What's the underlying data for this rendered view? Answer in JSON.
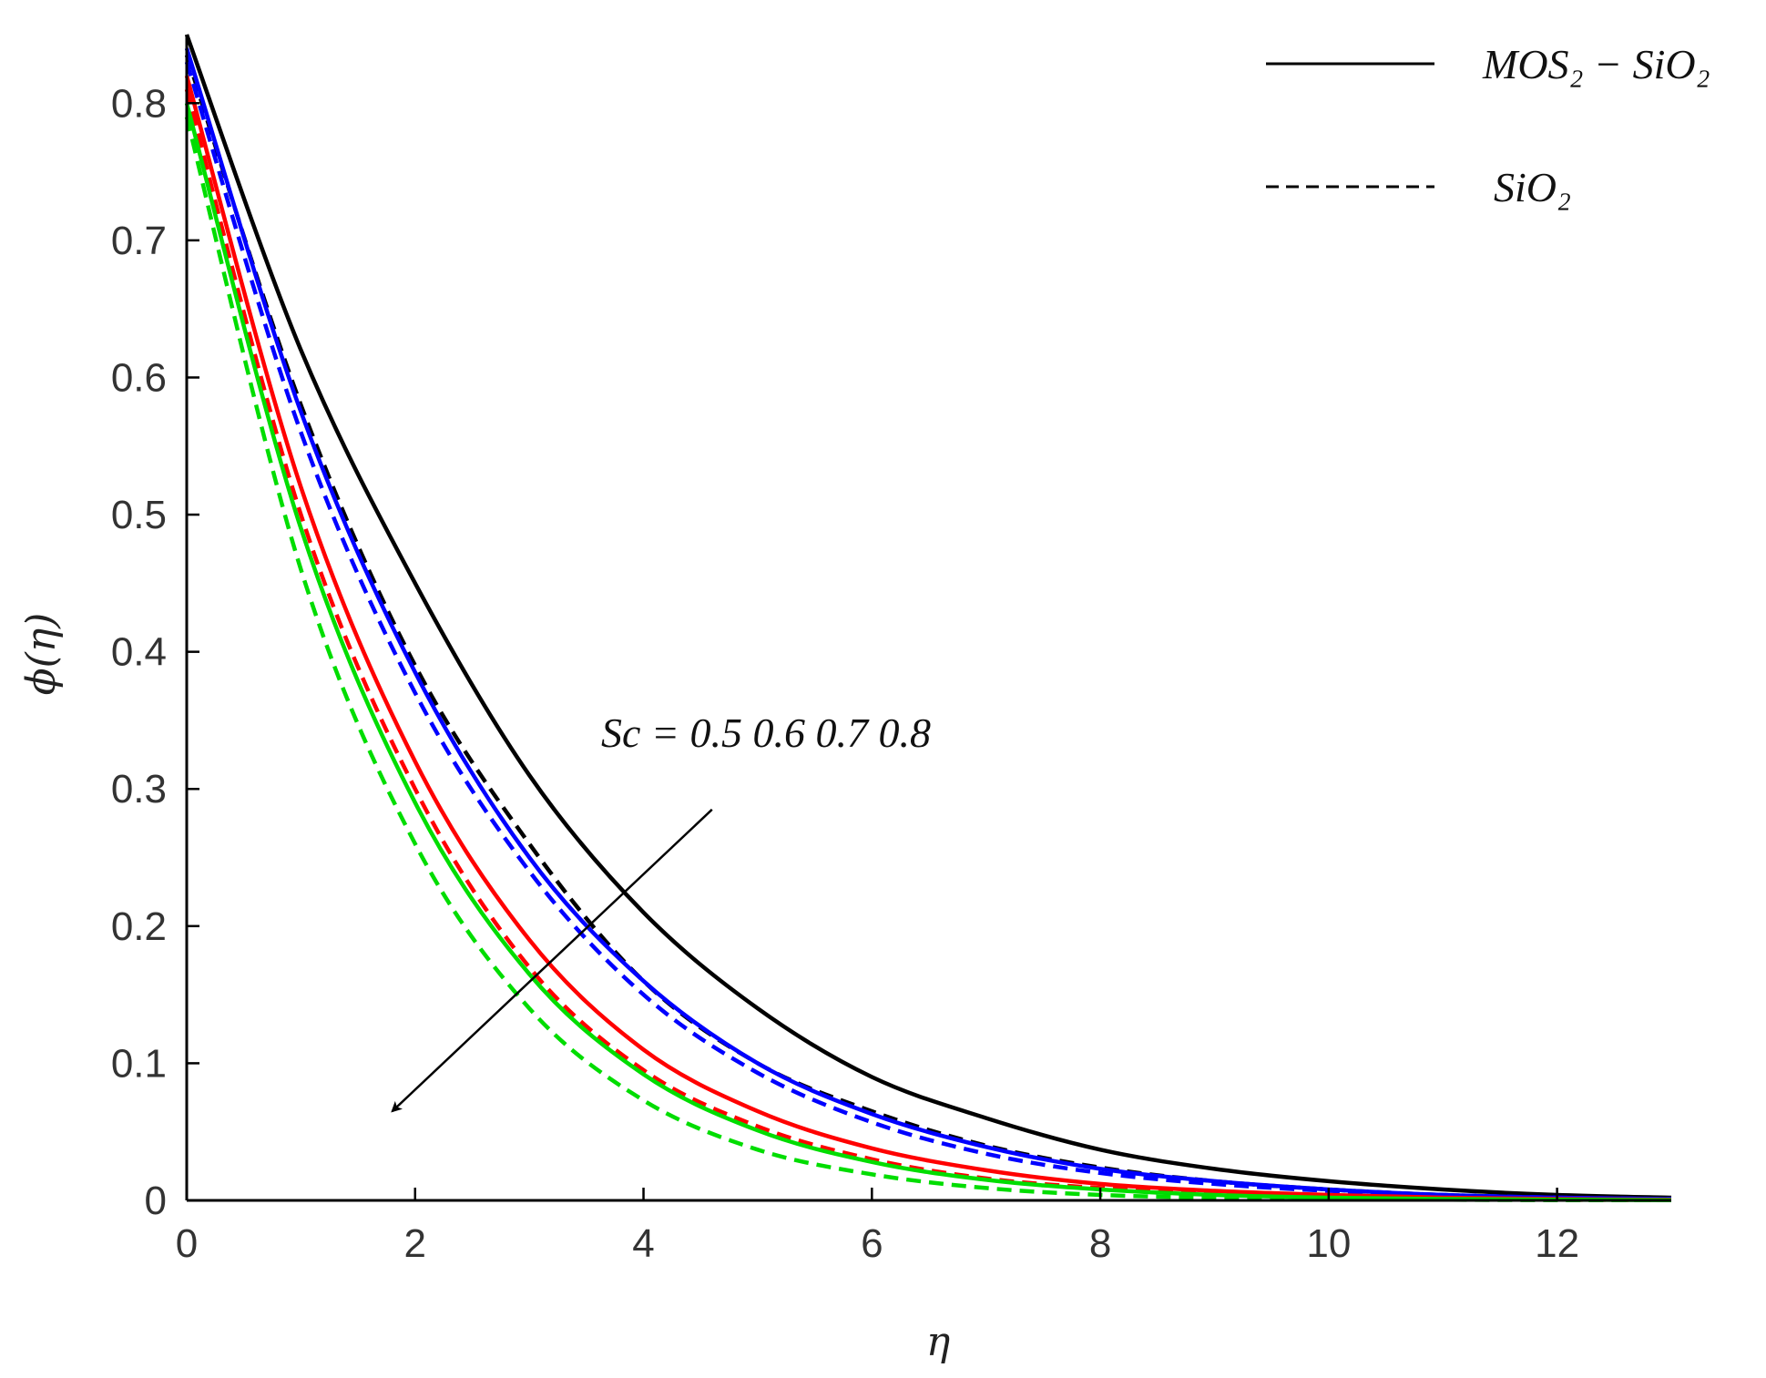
{
  "chart_data": {
    "type": "line",
    "xlabel": "η",
    "ylabel": "ϕ(η)",
    "xlim": [
      0,
      13
    ],
    "ylim": [
      0,
      0.85
    ],
    "xticks": [
      0,
      2,
      4,
      6,
      8,
      10,
      12
    ],
    "yticks": [
      0,
      0.1,
      0.2,
      0.3,
      0.4,
      0.5,
      0.6,
      0.7,
      0.8
    ],
    "xtick_labels": [
      "0",
      "2",
      "4",
      "6",
      "8",
      "10",
      "12"
    ],
    "ytick_labels": [
      "0",
      "0.1",
      "0.2",
      "0.3",
      "0.4",
      "0.5",
      "0.6",
      "0.7",
      "0.8"
    ],
    "x": [
      0,
      1,
      2,
      3,
      4,
      5,
      6,
      7,
      8,
      9,
      10,
      11,
      12,
      13
    ],
    "series": [
      {
        "group": "MOS2-SiO2",
        "sc": "0.5",
        "color": "#000000",
        "style": "solid",
        "values": [
          0.85,
          0.62,
          0.45,
          0.31,
          0.21,
          0.14,
          0.09,
          0.06,
          0.037,
          0.023,
          0.014,
          0.008,
          0.004,
          0.002
        ]
      },
      {
        "group": "SiO2",
        "sc": "0.5",
        "color": "#000000",
        "style": "dashed",
        "values": [
          0.835,
          0.58,
          0.39,
          0.26,
          0.16,
          0.1,
          0.065,
          0.04,
          0.024,
          0.014,
          0.008,
          0.004,
          0.002,
          0.001
        ]
      },
      {
        "group": "MOS2-SiO2",
        "sc": "0.6",
        "color": "#0000ff",
        "style": "solid",
        "values": [
          0.84,
          0.575,
          0.385,
          0.25,
          0.16,
          0.1,
          0.063,
          0.039,
          0.023,
          0.014,
          0.008,
          0.004,
          0.002,
          0.001
        ]
      },
      {
        "group": "SiO2",
        "sc": "0.6",
        "color": "#0000ff",
        "style": "dashed",
        "values": [
          0.83,
          0.56,
          0.37,
          0.24,
          0.15,
          0.093,
          0.057,
          0.034,
          0.02,
          0.012,
          0.007,
          0.004,
          0.002,
          0.001
        ]
      },
      {
        "group": "MOS2-SiO2",
        "sc": "0.7",
        "color": "#ff0000",
        "style": "solid",
        "values": [
          0.82,
          0.52,
          0.32,
          0.19,
          0.11,
          0.065,
          0.038,
          0.022,
          0.012,
          0.007,
          0.004,
          0.002,
          0.001,
          0.0005
        ]
      },
      {
        "group": "SiO2",
        "sc": "0.7",
        "color": "#ff0000",
        "style": "dashed",
        "values": [
          0.81,
          0.5,
          0.3,
          0.17,
          0.095,
          0.054,
          0.03,
          0.016,
          0.009,
          0.005,
          0.003,
          0.001,
          0.0005,
          0.0002
        ]
      },
      {
        "group": "MOS2-SiO2",
        "sc": "0.8",
        "color": "#00dd00",
        "style": "solid",
        "values": [
          0.8,
          0.49,
          0.29,
          0.165,
          0.092,
          0.051,
          0.028,
          0.015,
          0.008,
          0.004,
          0.002,
          0.001,
          0.0005,
          0.0002
        ]
      },
      {
        "group": "SiO2",
        "sc": "0.8",
        "color": "#00dd00",
        "style": "dashed",
        "values": [
          0.79,
          0.46,
          0.26,
          0.14,
          0.073,
          0.037,
          0.019,
          0.009,
          0.004,
          0.002,
          0.001,
          0.0005,
          0.0002,
          0.0001
        ]
      }
    ],
    "legend": {
      "position": "top-right",
      "entries": [
        {
          "label": "MOS₂ − SiO₂",
          "style": "solid",
          "color": "#000000"
        },
        {
          "label": "SiO₂",
          "style": "dashed",
          "color": "#000000"
        }
      ]
    },
    "annotation": {
      "text": "Sc = 0.5 0.6 0.7 0.8",
      "arrow_from": [
        4.6,
        0.285
      ],
      "arrow_to": [
        1.8,
        0.065
      ]
    },
    "grid": false
  }
}
